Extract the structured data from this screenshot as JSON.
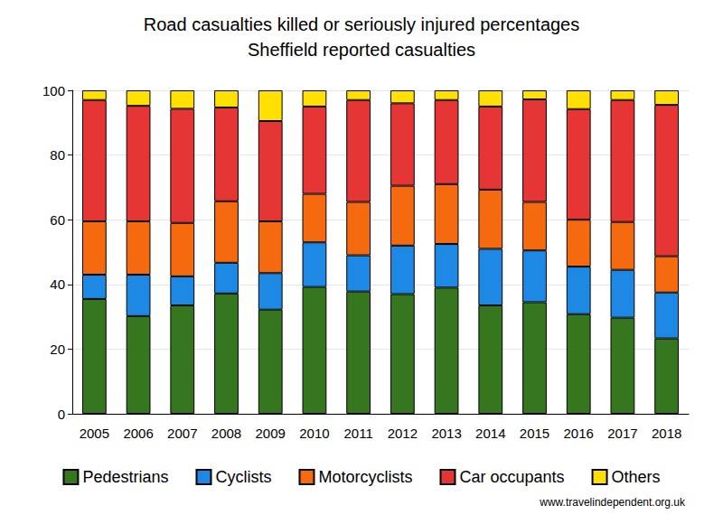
{
  "chart_data": {
    "type": "bar",
    "title": "Road casualties killed or seriously injured percentages",
    "subtitle": "Sheffield reported casualties",
    "annotation": "www.travelindependent.org.uk",
    "categories": [
      "2005",
      "2006",
      "2007",
      "2008",
      "2009",
      "2010",
      "2011",
      "2012",
      "2013",
      "2014",
      "2015",
      "2016",
      "2017",
      "2018"
    ],
    "series": [
      {
        "name": "Pedestrians",
        "color": "#36761e",
        "values": [
          35.5,
          30.2,
          33.5,
          37.2,
          32.2,
          39.2,
          37.8,
          37,
          39,
          33.5,
          34.5,
          30.8,
          29.7,
          23.3
        ]
      },
      {
        "name": "Cyclists",
        "color": "#1e88e5",
        "values": [
          7.5,
          12.8,
          9,
          9.5,
          11.3,
          13.8,
          11.2,
          15,
          13.5,
          17.5,
          16,
          14.7,
          14.8,
          14.2
        ]
      },
      {
        "name": "Motorcyclists",
        "color": "#f5690f",
        "values": [
          16.5,
          16.5,
          16.5,
          19,
          16,
          15,
          16.5,
          18.5,
          18.5,
          18.3,
          15,
          14.5,
          14.8,
          11.2
        ]
      },
      {
        "name": "Car occupants",
        "color": "#e53535",
        "values": [
          37.5,
          35.7,
          35.3,
          29,
          31,
          27,
          31.5,
          25.5,
          26,
          25.7,
          31.7,
          34.2,
          37.7,
          46.8
        ]
      },
      {
        "name": "Others",
        "color": "#ffe000",
        "values": [
          3,
          4.8,
          5.7,
          5.3,
          9.5,
          5,
          3,
          4,
          3,
          5,
          2.8,
          5.8,
          3,
          4.5
        ]
      }
    ],
    "ylim": [
      0,
      100
    ],
    "yticks": [
      0,
      20,
      40,
      60,
      80,
      100
    ],
    "stacked": true,
    "grid": true,
    "legend": "bottom"
  }
}
